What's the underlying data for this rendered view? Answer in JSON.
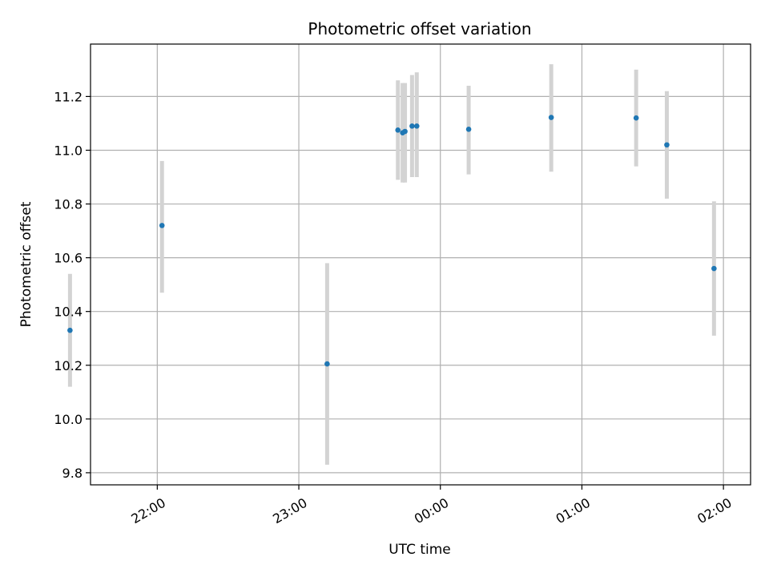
{
  "chart_data": {
    "type": "scatter",
    "title": "Photometric offset variation",
    "xlabel": "UTC time",
    "ylabel": "Photometric offset",
    "x_ticks": [
      "22:00",
      "23:00",
      "00:00",
      "01:00",
      "02:00"
    ],
    "y_ticks": [
      "9.8",
      "10.0",
      "10.2",
      "10.4",
      "10.6",
      "10.8",
      "11.0",
      "11.2"
    ],
    "xlim": [
      "21:30",
      "02:12"
    ],
    "ylim": [
      9.755,
      11.395
    ],
    "grid": true,
    "series": [
      {
        "x": [
          "21:23",
          "22:02",
          "23:12",
          "23:42",
          "23:44",
          "23:45",
          "23:48",
          "23:50",
          "00:12",
          "00:47",
          "01:23",
          "01:36",
          "01:56"
        ],
        "y": [
          10.33,
          10.72,
          10.205,
          11.075,
          11.065,
          11.07,
          11.09,
          11.09,
          11.078,
          11.122,
          11.12,
          11.02,
          10.56
        ],
        "err_low": [
          10.12,
          10.47,
          9.83,
          10.89,
          10.88,
          10.88,
          10.9,
          10.9,
          10.91,
          10.92,
          10.94,
          10.82,
          10.31
        ],
        "err_high": [
          10.54,
          10.96,
          10.58,
          11.26,
          11.25,
          11.25,
          11.28,
          11.29,
          11.24,
          11.32,
          11.3,
          11.22,
          10.81
        ],
        "color": "#1f77b4",
        "error_color": "#d3d3d3"
      }
    ]
  }
}
